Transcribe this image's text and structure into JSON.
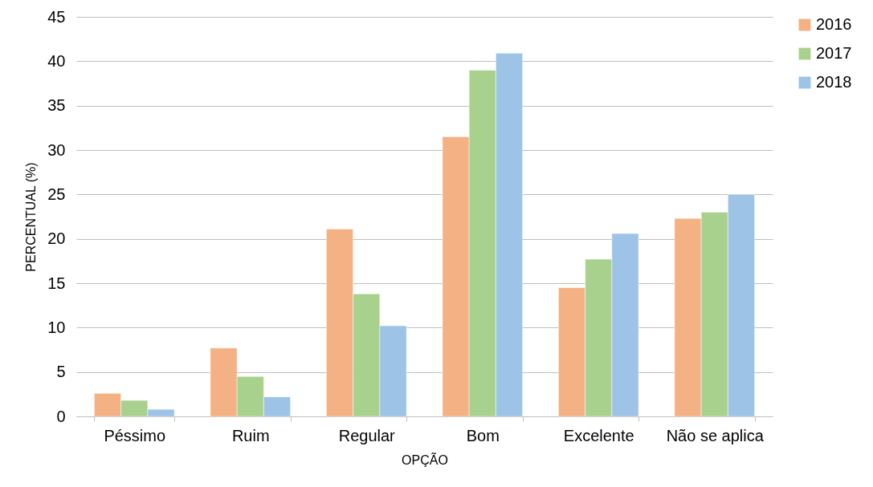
{
  "chart_data": {
    "type": "bar",
    "xlabel": "OPÇÃO",
    "ylabel": "PERCENTUAL (%)",
    "categories": [
      "Péssimo",
      "Ruim",
      "Regular",
      "Bom",
      "Excelente",
      "Não se aplica"
    ],
    "series": [
      {
        "name": "2016",
        "color": "#f4b183",
        "values": [
          2.6,
          7.7,
          21.1,
          31.5,
          14.5,
          22.3
        ]
      },
      {
        "name": "2017",
        "color": "#a9d18e",
        "values": [
          1.8,
          4.5,
          13.8,
          39.0,
          17.7,
          23.0
        ]
      },
      {
        "name": "2018",
        "color": "#9dc3e6",
        "values": [
          0.8,
          2.2,
          10.2,
          40.9,
          20.6,
          25.0
        ]
      }
    ],
    "ylim": [
      0,
      45
    ],
    "yticks": [
      0,
      5,
      10,
      15,
      20,
      25,
      30,
      35,
      40,
      45
    ],
    "grid": "y",
    "legend": "right"
  }
}
